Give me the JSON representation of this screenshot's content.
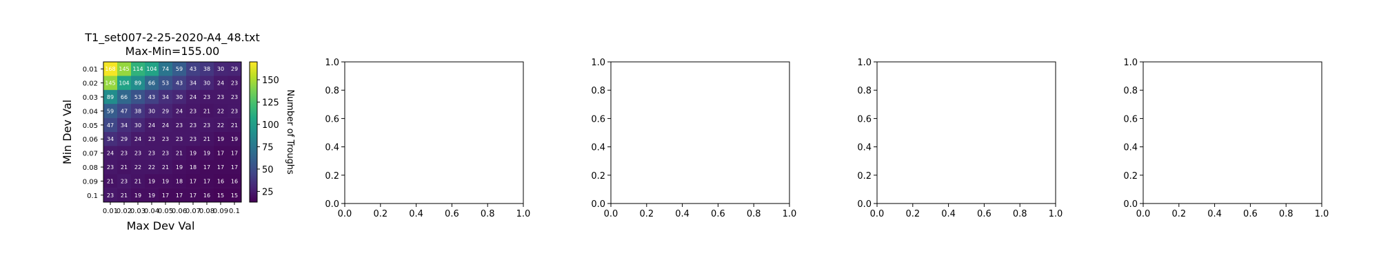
{
  "figure": {
    "title_line1": "T1_set007-2-25-2020-A4_48.txt",
    "title_line2": "Max-Min=155.00"
  },
  "chart_data": [
    {
      "type": "heatmap",
      "title": "T1_set007-2-25-2020-A4_48.txt\nMax-Min=155.00",
      "xlabel": "Max Dev Val",
      "ylabel": "Min Dev Val",
      "x_categories": [
        "0.01",
        "0.02",
        "0.03",
        "0.04",
        "0.05",
        "0.06",
        "0.07",
        "0.08",
        "0.09",
        "0.1"
      ],
      "y_categories": [
        "0.01",
        "0.02",
        "0.03",
        "0.04",
        "0.05",
        "0.06",
        "0.07",
        "0.08",
        "0.09",
        "0.1"
      ],
      "values": [
        [
          168,
          145,
          114,
          104,
          74,
          59,
          43,
          38,
          30,
          29
        ],
        [
          145,
          104,
          89,
          66,
          53,
          43,
          34,
          30,
          24,
          23
        ],
        [
          89,
          66,
          53,
          43,
          34,
          30,
          24,
          23,
          23,
          23
        ],
        [
          59,
          47,
          38,
          30,
          29,
          24,
          23,
          21,
          22,
          23
        ],
        [
          47,
          34,
          30,
          24,
          24,
          23,
          23,
          23,
          22,
          21
        ],
        [
          34,
          29,
          24,
          23,
          23,
          23,
          23,
          21,
          19,
          19
        ],
        [
          24,
          23,
          23,
          23,
          23,
          21,
          19,
          19,
          17,
          17
        ],
        [
          23,
          21,
          22,
          22,
          21,
          19,
          18,
          17,
          17,
          17
        ],
        [
          21,
          23,
          21,
          19,
          19,
          18,
          17,
          17,
          16,
          16
        ],
        [
          23,
          21,
          19,
          19,
          17,
          17,
          17,
          16,
          15,
          15
        ]
      ],
      "cell_labels": [
        [
          "168",
          "145",
          "114",
          "104",
          "74",
          "59",
          "43",
          "38",
          "30",
          "29"
        ],
        [
          "145",
          "104",
          "89",
          "66",
          "53",
          "43",
          "34",
          "30",
          "24",
          "23"
        ],
        [
          "89",
          "66",
          "53",
          "43",
          "34",
          "30",
          "24",
          "23",
          "23",
          "23"
        ],
        [
          "59",
          "47",
          "38",
          "30",
          "29",
          "24",
          "23",
          "21",
          "22",
          "23"
        ],
        [
          "47",
          "34",
          "30",
          "24",
          "24",
          "23",
          "23",
          "23",
          "22",
          "21"
        ],
        [
          "34",
          "29",
          "24",
          "23",
          "23",
          "23",
          "23",
          "21",
          "19",
          "19"
        ],
        [
          "24",
          "23",
          "23",
          "23",
          "23",
          "21",
          "19",
          "19",
          "17",
          "17"
        ],
        [
          "23",
          "21",
          "22",
          "22",
          "21",
          "19",
          "18",
          "17",
          "17",
          "17"
        ],
        [
          "21",
          "23",
          "21",
          "19",
          "19",
          "18",
          "17",
          "17",
          "16",
          "16"
        ],
        [
          "23",
          "21",
          "19",
          "19",
          "17",
          "17",
          "17",
          "16",
          "15",
          "15"
        ]
      ],
      "colorbar": {
        "label": "Number of Troughs",
        "colormap": "viridis",
        "range": [
          13,
          170
        ],
        "ticks": [
          25,
          50,
          75,
          100,
          125,
          150
        ],
        "tick_labels": [
          "25",
          "50",
          "75",
          "100",
          "125",
          "150"
        ]
      }
    },
    {
      "type": "line",
      "xlim": [
        0,
        1
      ],
      "ylim": [
        0,
        1
      ],
      "x_ticks": [
        "0.0",
        "0.2",
        "0.4",
        "0.6",
        "0.8",
        "1.0"
      ],
      "y_ticks": [
        "0.0",
        "0.2",
        "0.4",
        "0.6",
        "0.8",
        "1.0"
      ],
      "series": []
    },
    {
      "type": "line",
      "xlim": [
        0,
        1
      ],
      "ylim": [
        0,
        1
      ],
      "x_ticks": [
        "0.0",
        "0.2",
        "0.4",
        "0.6",
        "0.8",
        "1.0"
      ],
      "y_ticks": [
        "0.0",
        "0.2",
        "0.4",
        "0.6",
        "0.8",
        "1.0"
      ],
      "series": []
    },
    {
      "type": "line",
      "xlim": [
        0,
        1
      ],
      "ylim": [
        0,
        1
      ],
      "x_ticks": [
        "0.0",
        "0.2",
        "0.4",
        "0.6",
        "0.8",
        "1.0"
      ],
      "y_ticks": [
        "0.0",
        "0.2",
        "0.4",
        "0.6",
        "0.8",
        "1.0"
      ],
      "series": []
    },
    {
      "type": "line",
      "xlim": [
        0,
        1
      ],
      "ylim": [
        0,
        1
      ],
      "x_ticks": [
        "0.0",
        "0.2",
        "0.4",
        "0.6",
        "0.8",
        "1.0"
      ],
      "y_ticks": [
        "0.0",
        "0.2",
        "0.4",
        "0.6",
        "0.8",
        "1.0"
      ],
      "series": []
    }
  ]
}
